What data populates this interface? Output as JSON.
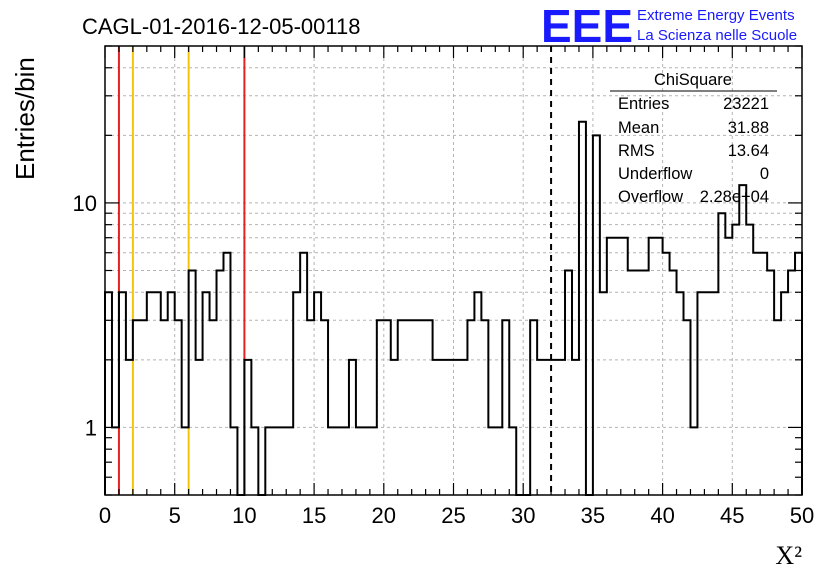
{
  "chart_data": {
    "type": "histogram",
    "title": "CAGL-01-2016-12-05-00118",
    "xlabel": "X²",
    "ylabel": "Entries/bin",
    "xlim": [
      0,
      50
    ],
    "ylim": [
      0.5,
      50
    ],
    "yscale": "log",
    "grid": true,
    "bin_width": 0.5,
    "x_ticks": [
      0,
      5,
      10,
      15,
      20,
      25,
      30,
      35,
      40,
      45,
      50
    ],
    "y_ticks": [
      {
        "value": 1,
        "label": "1"
      },
      {
        "value": 10,
        "label": "10"
      }
    ],
    "counts": [
      4,
      1,
      4,
      2,
      3,
      3,
      4,
      4,
      3,
      4,
      3,
      1,
      5,
      2,
      4,
      3,
      5,
      6,
      1,
      0,
      2,
      1,
      0,
      1,
      1,
      1,
      1,
      4,
      6,
      3,
      4,
      3,
      1,
      1,
      1,
      2,
      1,
      1,
      1,
      3,
      3,
      2,
      3,
      3,
      3,
      3,
      3,
      2,
      2,
      2,
      2,
      2,
      3,
      4,
      3,
      1,
      1,
      3,
      1,
      0,
      0,
      3,
      2,
      2,
      2,
      2,
      5,
      2,
      23,
      0,
      20,
      4,
      7,
      7,
      7,
      5,
      5,
      5,
      7,
      7,
      6,
      5,
      4,
      3,
      1,
      4,
      4,
      4,
      9,
      7,
      8,
      12,
      8,
      6,
      6,
      5,
      3,
      4,
      5,
      6
    ],
    "vertical_lines": [
      {
        "x": 1,
        "color": "#e52121",
        "style": "solid"
      },
      {
        "x": 2,
        "color": "#f2c40c",
        "style": "solid"
      },
      {
        "x": 6,
        "color": "#f2c40c",
        "style": "solid"
      },
      {
        "x": 10,
        "color": "#e52121",
        "style": "solid"
      },
      {
        "x": 32,
        "color": "#000000",
        "style": "dashed"
      }
    ],
    "stats_box": {
      "name": "ChiSquare",
      "rows": [
        {
          "label": "Entries",
          "value": "23221"
        },
        {
          "label": "Mean",
          "value": "31.88"
        },
        {
          "label": "RMS",
          "value": "13.64"
        },
        {
          "label": "Underflow",
          "value": "0"
        },
        {
          "label": "Overflow",
          "value": "2.28e+04"
        }
      ]
    }
  },
  "logo": {
    "mark": "EEE",
    "line1": "Extreme Energy Events",
    "line2": "La Scienza nelle Scuole",
    "color": "#1a1aff"
  }
}
